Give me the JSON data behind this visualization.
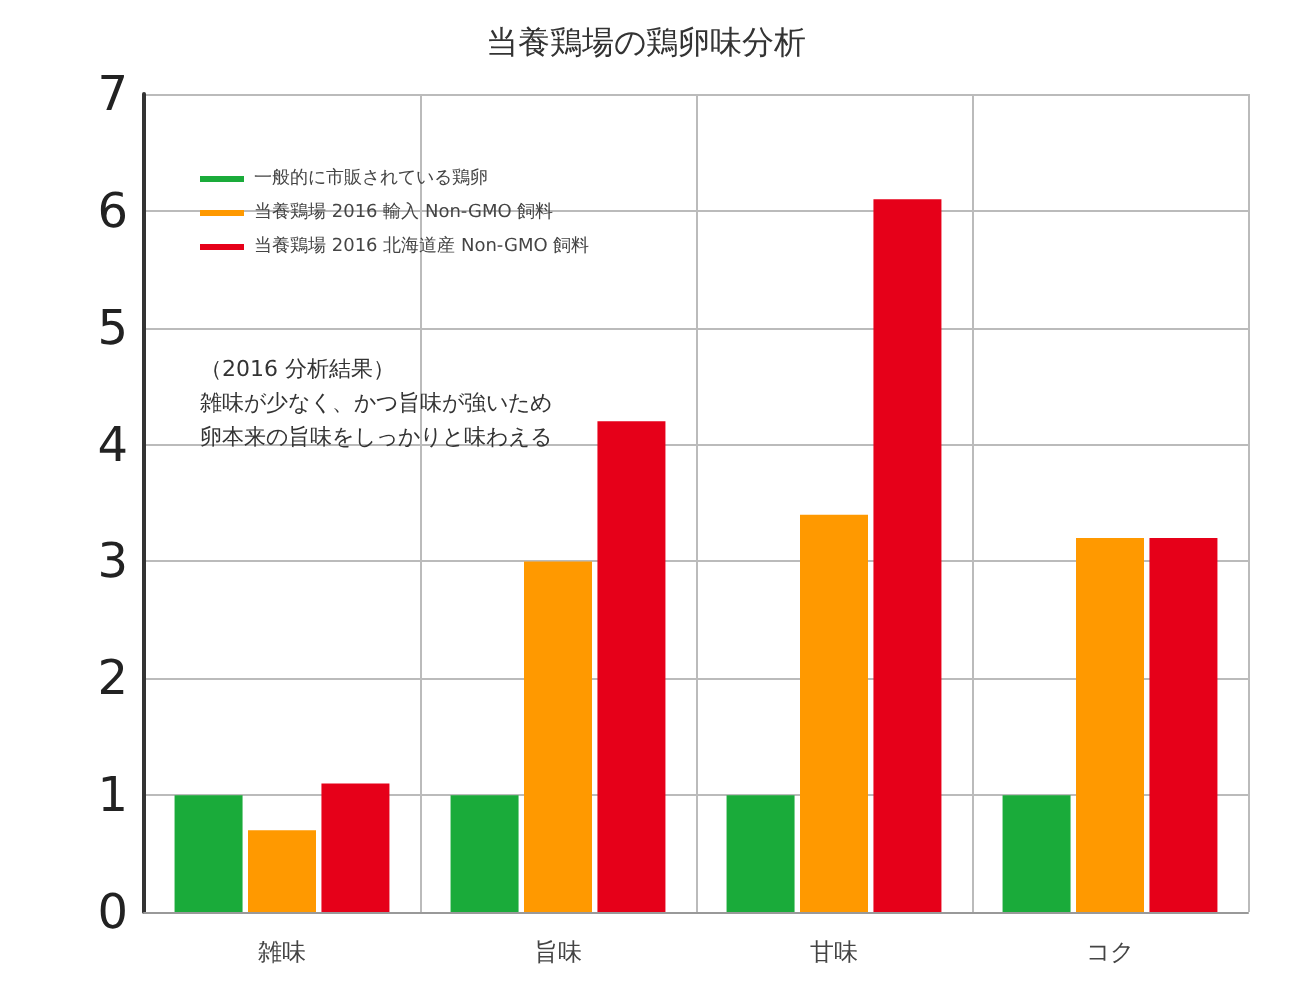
{
  "chart_data": {
    "type": "bar",
    "title": "当養鶏場の鶏卵味分析",
    "categories": [
      "雑味",
      "旨味",
      "甘味",
      "コク"
    ],
    "series": [
      {
        "name": "一般的に市販されている鶏卵",
        "color": "#1aab3a",
        "values": [
          1,
          1,
          1,
          1
        ]
      },
      {
        "name": "当養鶏場 2016 輸入 Non-GMO 飼料",
        "color": "#ff9900",
        "values": [
          0.7,
          3.0,
          3.4,
          3.2
        ]
      },
      {
        "name": "当養鶏場 2016 北海道産 Non-GMO 飼料",
        "color": "#e60019",
        "values": [
          1.1,
          4.2,
          6.1,
          3.2
        ]
      }
    ],
    "ylim": [
      0,
      7
    ],
    "yticks": [
      0,
      1,
      2,
      3,
      4,
      5,
      6,
      7
    ],
    "grid": true,
    "legend": "top left",
    "annotations": [
      "（2016 分析結果）",
      "雑味が少なく、かつ旨味が強いため",
      "卵本来の旨味をしっかりと味わえる"
    ]
  }
}
